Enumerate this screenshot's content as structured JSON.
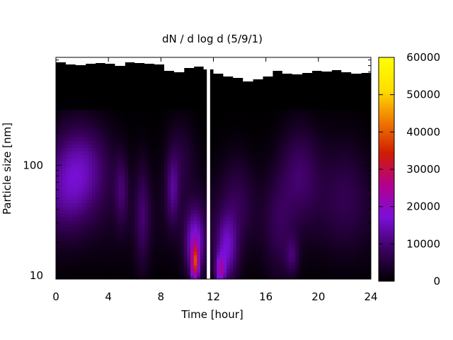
{
  "chart_data": {
    "type": "heatmap",
    "title": "dN / d log d (5/9/1)",
    "xlabel": "Time [hour]",
    "ylabel": "Particle size [nm]",
    "xlim": [
      0,
      24
    ],
    "ylim": [
      9.3,
      950
    ],
    "y_scale": "log",
    "x_ticks": [
      "0",
      "4",
      "8",
      "12",
      "16",
      "20",
      "24"
    ],
    "x_tick_values": [
      0,
      4,
      8,
      12,
      16,
      20,
      24
    ],
    "y_ticks": [
      "10",
      "100"
    ],
    "y_tick_values": [
      10,
      100
    ],
    "colorbar": {
      "range": [
        0,
        60000
      ],
      "ticks": [
        "0",
        "10000",
        "20000",
        "30000",
        "40000",
        "50000",
        "60000"
      ],
      "tick_values": [
        0,
        10000,
        20000,
        30000,
        40000,
        50000,
        60000
      ],
      "colormap": [
        "#000000",
        "#3c0060",
        "#7a10d8",
        "#b40090",
        "#d01c00",
        "#f07a00",
        "#ffe000",
        "#ffff00"
      ]
    },
    "grid": false,
    "data_gaps_hours": [
      [
        11.5,
        11.75
      ]
    ],
    "blobs": [
      {
        "t": 1.8,
        "d": 100,
        "sigma_t": 1.6,
        "sigma_logd": 0.28,
        "value": 13000
      },
      {
        "t": 0.6,
        "d": 50,
        "sigma_t": 1.4,
        "sigma_logd": 0.25,
        "value": 6000
      },
      {
        "t": 5.0,
        "d": 60,
        "sigma_t": 0.35,
        "sigma_logd": 0.22,
        "value": 7000
      },
      {
        "t": 6.6,
        "d": 35,
        "sigma_t": 0.4,
        "sigma_logd": 0.35,
        "value": 7000
      },
      {
        "t": 8.9,
        "d": 60,
        "sigma_t": 0.35,
        "sigma_logd": 0.22,
        "value": 9000
      },
      {
        "t": 9.5,
        "d": 120,
        "sigma_t": 0.8,
        "sigma_logd": 0.25,
        "value": 5000
      },
      {
        "t": 10.6,
        "d": 20,
        "sigma_t": 0.55,
        "sigma_logd": 0.22,
        "value": 16000
      },
      {
        "t": 10.6,
        "d": 13,
        "sigma_t": 0.2,
        "sigma_logd": 0.12,
        "value": 26000
      },
      {
        "t": 13.0,
        "d": 17,
        "sigma_t": 0.6,
        "sigma_logd": 0.22,
        "value": 14000
      },
      {
        "t": 12.5,
        "d": 11,
        "sigma_t": 0.25,
        "sigma_logd": 0.1,
        "value": 16000
      },
      {
        "t": 13.8,
        "d": 50,
        "sigma_t": 0.9,
        "sigma_logd": 0.3,
        "value": 5000
      },
      {
        "t": 17.0,
        "d": 25,
        "sigma_t": 0.8,
        "sigma_logd": 0.35,
        "value": 5000
      },
      {
        "t": 18.6,
        "d": 90,
        "sigma_t": 1.1,
        "sigma_logd": 0.3,
        "value": 8000
      },
      {
        "t": 18.0,
        "d": 15,
        "sigma_t": 0.35,
        "sigma_logd": 0.12,
        "value": 7000
      },
      {
        "t": 22.0,
        "d": 60,
        "sigma_t": 1.3,
        "sigma_logd": 0.35,
        "value": 5000
      }
    ],
    "background_value": 2500
  }
}
